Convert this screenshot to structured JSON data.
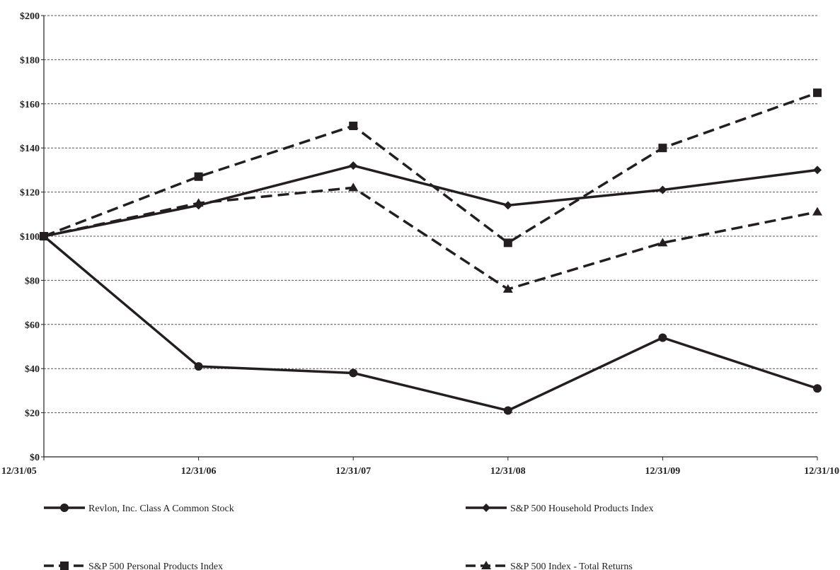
{
  "chart_data": {
    "type": "line",
    "x": [
      "12/31/05",
      "12/31/06",
      "12/31/07",
      "12/31/08",
      "12/31/09",
      "12/31/10"
    ],
    "y_ticks": [
      "$0",
      "$20",
      "$40",
      "$60",
      "$80",
      "$100",
      "$120",
      "$140",
      "$160",
      "$180",
      "$200"
    ],
    "ylim": [
      0,
      200
    ],
    "grid": "horizontal dashed",
    "series": [
      {
        "name": "Revlon, Inc. Class A Common Stock",
        "values": [
          100,
          41,
          38,
          21,
          54,
          31
        ],
        "marker": "circle",
        "line_style": "solid",
        "color": "#231f20"
      },
      {
        "name": "S&P 500 Household Products Index",
        "values": [
          100,
          114,
          132,
          114,
          121,
          130
        ],
        "marker": "diamond",
        "line_style": "solid",
        "color": "#231f20"
      },
      {
        "name": "S&P 500 Personal Products Index",
        "values": [
          100,
          127,
          150,
          97,
          140,
          165
        ],
        "marker": "square",
        "line_style": "dashed",
        "color": "#231f20"
      },
      {
        "name": "S&P 500 Index - Total Returns",
        "values": [
          100,
          115,
          122,
          76,
          97,
          111
        ],
        "marker": "triangle",
        "line_style": "dashed",
        "color": "#231f20"
      }
    ],
    "legend_position": "bottom"
  }
}
